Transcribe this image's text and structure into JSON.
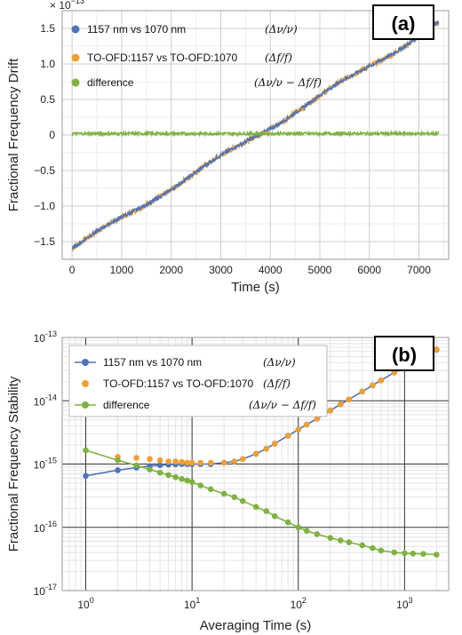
{
  "chart_data": [
    {
      "type": "line",
      "panel_label": "(a)",
      "xlabel": "Time (s)",
      "ylabel": "Fractional Frequency Drift",
      "y_multiplier": "× 10",
      "y_multiplier_exp": "−13",
      "xlim": [
        -200,
        7600
      ],
      "ylim": [
        -1.75,
        1.75
      ],
      "xticks": [
        0,
        1000,
        2000,
        3000,
        4000,
        5000,
        6000,
        7000
      ],
      "yticks": [
        -1.5,
        -1.0,
        -0.5,
        0,
        0.5,
        1.0,
        1.5
      ],
      "ytick_labels": [
        "−1.5",
        "−1.0",
        "−0.5",
        "0",
        "0.5",
        "1.0",
        "1.5"
      ],
      "grid": true,
      "legend_position": "top-left",
      "series": [
        {
          "name": "1157 nm vs 1070 nm",
          "equation": "(Δν/ν)",
          "color": "#4f73b8",
          "x": [
            0,
            7400
          ],
          "y": [
            -1.6,
            1.57
          ]
        },
        {
          "name": "TO-OFD:1157 vs TO-OFD:1070",
          "equation": "(Δf/f)",
          "color": "#f0a030",
          "x": [
            0,
            7400
          ],
          "y": [
            -1.6,
            1.57
          ]
        },
        {
          "name": "difference",
          "equation": "(Δν/ν − Δf/f)",
          "color": "#7fb241",
          "x": [
            0,
            7400
          ],
          "y": [
            0.02,
            0.02
          ]
        }
      ]
    },
    {
      "type": "line",
      "panel_label": "(b)",
      "xlabel": "Averaging Time (s)",
      "ylabel": "Fractional Frequency Stability",
      "xscale": "log",
      "yscale": "log",
      "xlim": [
        0.6,
        2600
      ],
      "ylim": [
        1e-17,
        1e-13
      ],
      "xticks": [
        1,
        10,
        100,
        1000
      ],
      "xtick_labels": [
        {
          "base": "10",
          "exp": "0"
        },
        {
          "base": "10",
          "exp": "1"
        },
        {
          "base": "10",
          "exp": "2"
        },
        {
          "base": "10",
          "exp": "3"
        }
      ],
      "yticks": [
        1e-17,
        1e-16,
        1e-15,
        1e-14,
        1e-13
      ],
      "ytick_labels": [
        {
          "base": "10",
          "exp": "-17"
        },
        {
          "base": "10",
          "exp": "-16"
        },
        {
          "base": "10",
          "exp": "-15"
        },
        {
          "base": "10",
          "exp": "-14"
        },
        {
          "base": "10",
          "exp": "-13"
        }
      ],
      "grid": true,
      "legend_position": "top-left",
      "series": [
        {
          "name": "1157 nm vs 1070 nm",
          "equation": "(Δν/ν)",
          "color": "#4f73b8",
          "line": true,
          "x": [
            1,
            2,
            3,
            4,
            5,
            6,
            7,
            8,
            9,
            10,
            12,
            15,
            20,
            25,
            30,
            40,
            50,
            60,
            80,
            100,
            120,
            150,
            200,
            250,
            300,
            400,
            500,
            600,
            800,
            1000,
            1200,
            1500,
            2000
          ],
          "y": [
            6.5e-16,
            8e-16,
            8.8e-16,
            9.3e-16,
            9.6e-16,
            9.8e-16,
            9.9e-16,
            1e-15,
            1e-15,
            1e-15,
            1e-15,
            1e-15,
            1.05e-15,
            1.1e-15,
            1.2e-15,
            1.45e-15,
            1.75e-15,
            2.1e-15,
            2.8e-15,
            3.5e-15,
            4.2e-15,
            5.2e-15,
            7e-15,
            8.8e-15,
            1.05e-14,
            1.4e-14,
            1.75e-14,
            2.1e-14,
            2.8e-14,
            3.4e-14,
            4e-14,
            4.8e-14,
            6.4e-14
          ]
        },
        {
          "name": "TO-OFD:1157 vs TO-OFD:1070",
          "equation": "(Δf/f)",
          "color": "#f0a030",
          "line": false,
          "x": [
            2,
            3,
            4,
            5,
            6,
            7,
            8,
            9,
            10,
            12,
            15,
            20,
            25,
            30,
            40,
            50,
            60,
            80,
            100,
            120,
            150,
            200,
            250,
            300,
            400,
            500,
            600,
            800,
            1000,
            1200,
            1500,
            2000
          ],
          "y": [
            1.3e-15,
            1.25e-15,
            1.2e-15,
            1.15e-15,
            1.1e-15,
            1.1e-15,
            1.08e-15,
            1.05e-15,
            1.05e-15,
            1.05e-15,
            1.05e-15,
            1.05e-15,
            1.1e-15,
            1.2e-15,
            1.45e-15,
            1.75e-15,
            2.1e-15,
            2.8e-15,
            3.5e-15,
            4.2e-15,
            5.2e-15,
            7e-15,
            8.8e-15,
            1.05e-14,
            1.4e-14,
            1.75e-14,
            2.1e-14,
            2.8e-14,
            3.4e-14,
            4e-14,
            4.8e-14,
            6.5e-14
          ]
        },
        {
          "name": "difference",
          "equation": "(Δν/ν − Δf/f)",
          "color": "#7fb241",
          "line": true,
          "x": [
            1,
            2,
            3,
            4,
            5,
            6,
            7,
            8,
            9,
            10,
            12,
            15,
            20,
            25,
            30,
            40,
            50,
            60,
            80,
            100,
            120,
            150,
            200,
            250,
            300,
            400,
            500,
            600,
            800,
            1000,
            1200,
            1500,
            2000
          ],
          "y": [
            1.65e-15,
            1.15e-15,
            9.5e-16,
            8.2e-16,
            7.3e-16,
            6.7e-16,
            6.2e-16,
            5.8e-16,
            5.5e-16,
            5.2e-16,
            4.6e-16,
            4e-16,
            3.4e-16,
            3e-16,
            2.6e-16,
            2.1e-16,
            1.8e-16,
            1.5e-16,
            1.2e-16,
            1e-16,
            8.8e-17,
            7.8e-17,
            6.8e-17,
            6.2e-17,
            5.8e-17,
            5.2e-17,
            4.7e-17,
            4.3e-17,
            4e-17,
            3.9e-17,
            3.85e-17,
            3.8e-17,
            3.7e-17
          ]
        }
      ]
    }
  ]
}
